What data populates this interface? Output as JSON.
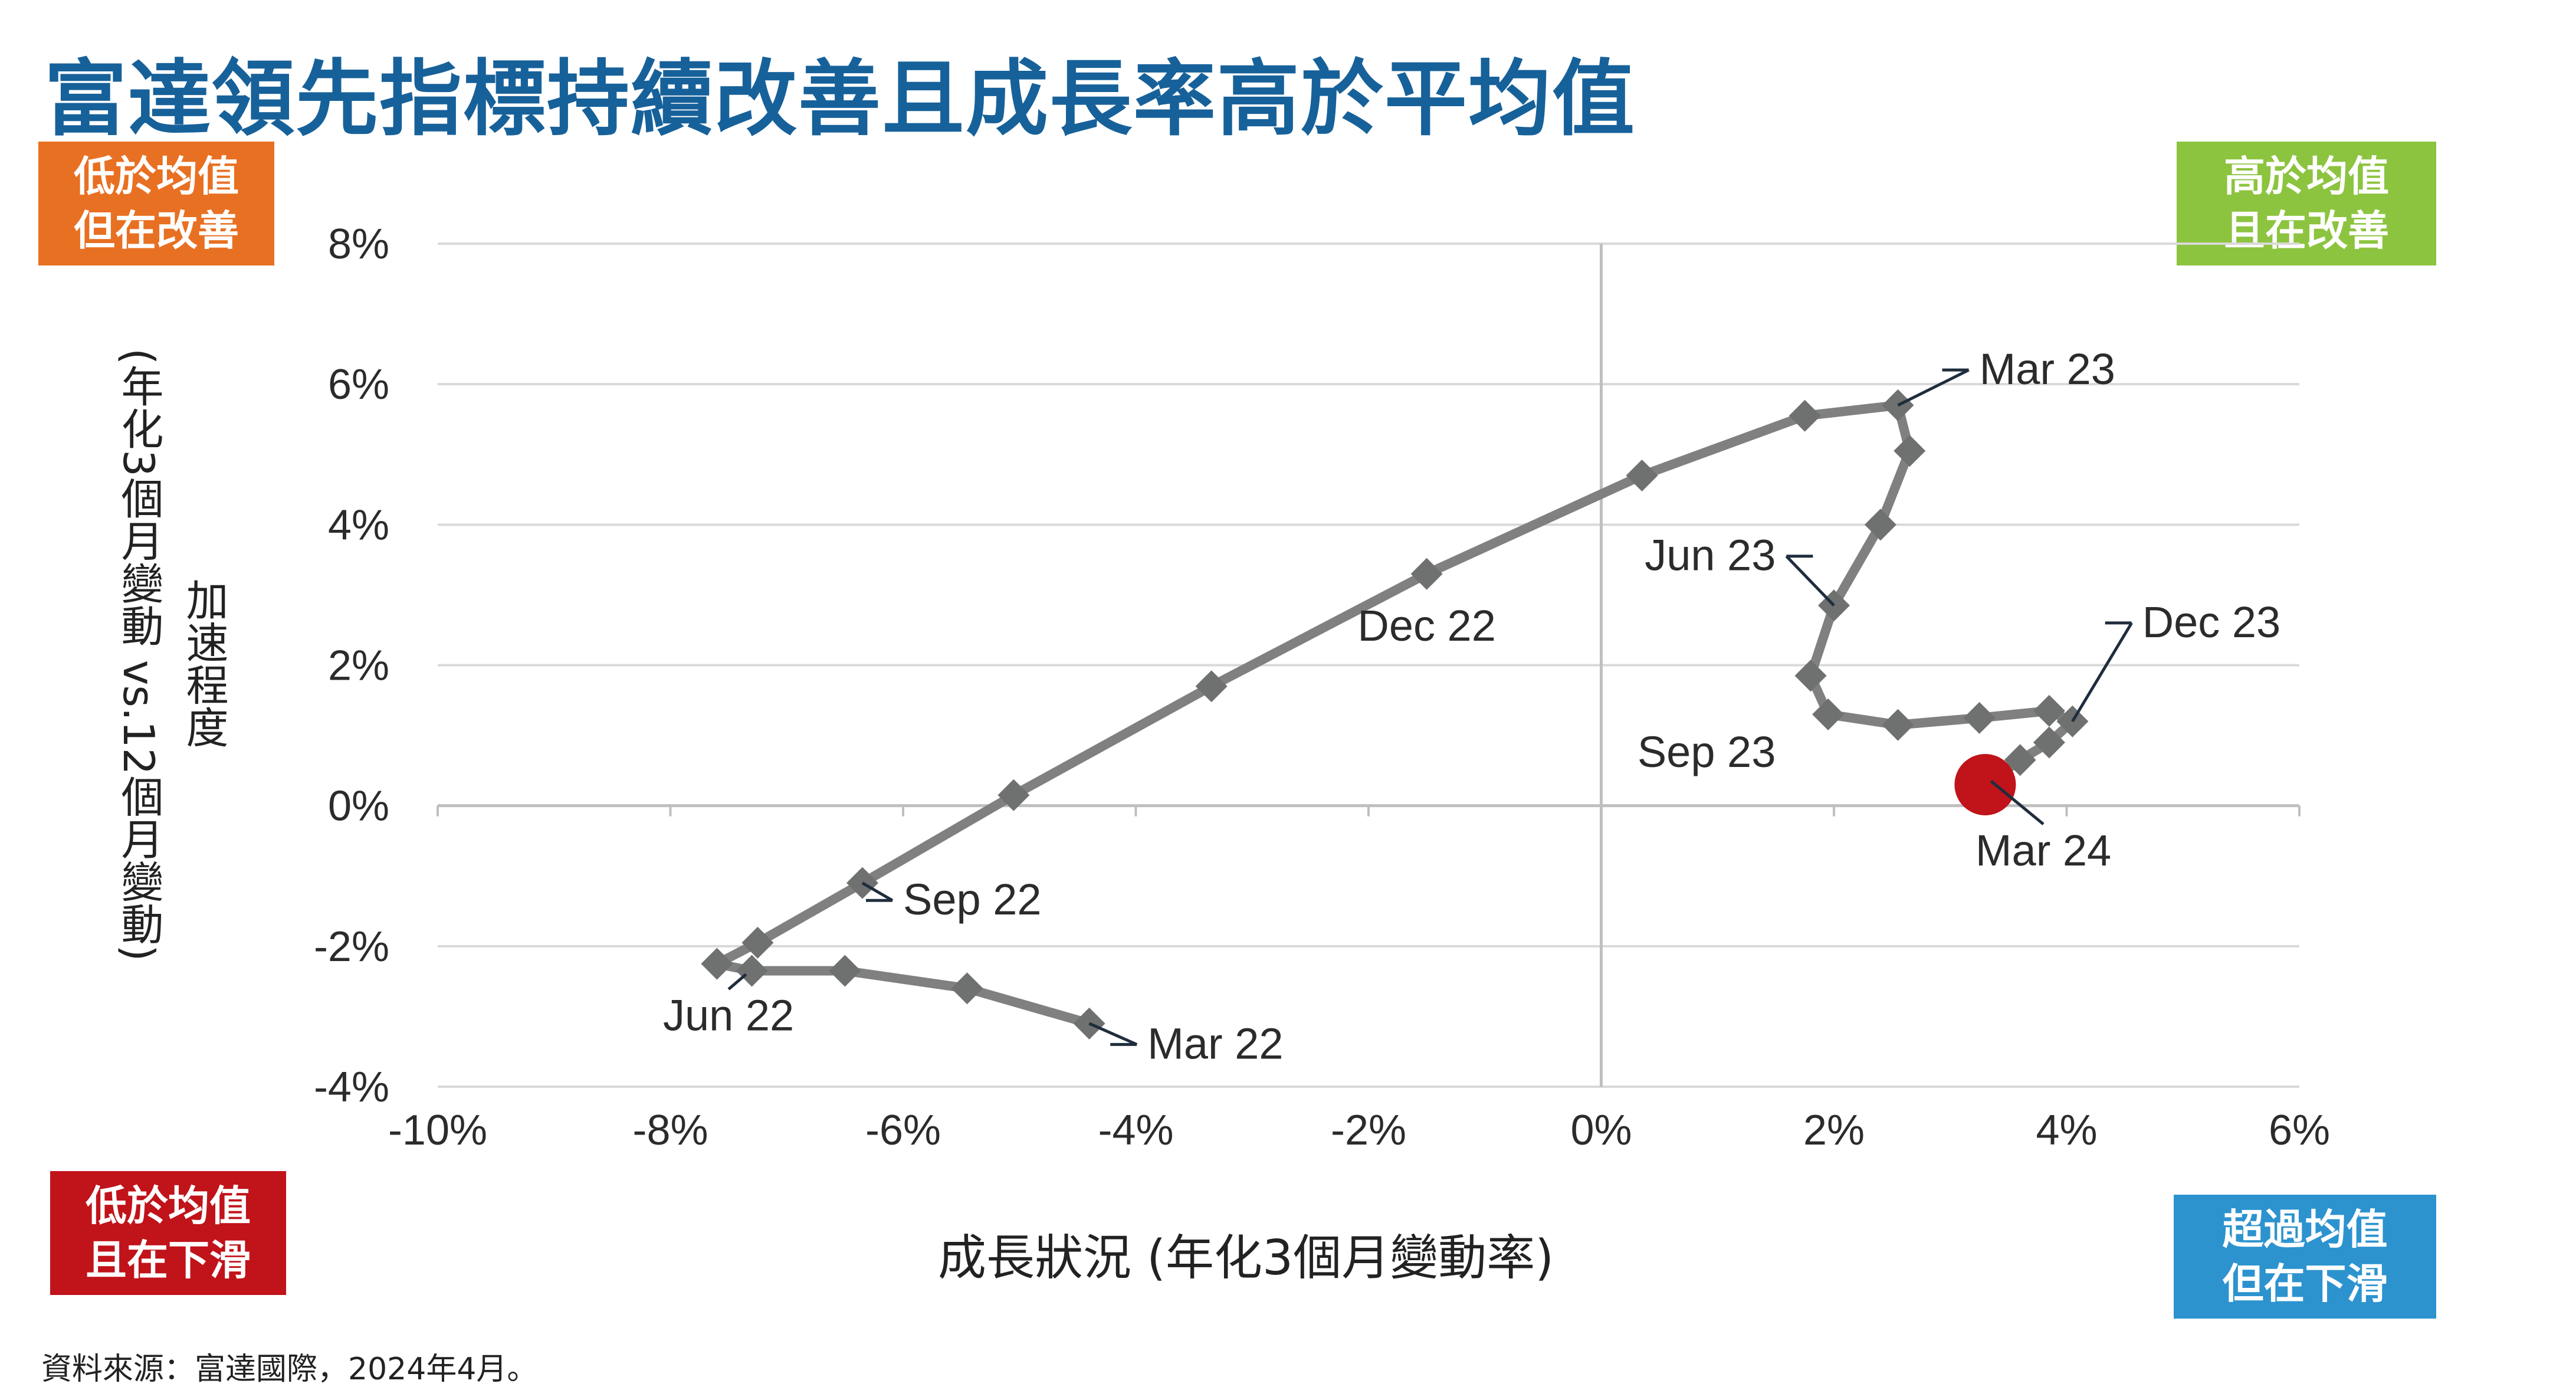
{
  "page": {
    "title": "富達領先指標持續改善且成長率高於平均值",
    "source": "資料來源：富達國際，2024年4月。",
    "quadrants": {
      "top_left": {
        "line1": "低於均值",
        "line2": "但在改善",
        "color": "#e87022"
      },
      "top_right": {
        "line1": "高於均值",
        "line2": "且在改善",
        "color": "#8cc43f"
      },
      "bottom_left": {
        "line1": "低於均值",
        "line2": "且在下滑",
        "color": "#c0131a"
      },
      "bottom_right": {
        "line1": "超過均值",
        "line2": "但在下滑",
        "color": "#2c93cf"
      }
    }
  },
  "chart_data": {
    "type": "line",
    "title": "",
    "xlabel": "成長狀況 (年化3個月變動率)",
    "ylabel_outer": "(年化3個月變動 vs.12個月變動)",
    "ylabel_inner": "加速程度",
    "xlim": [
      -10,
      6
    ],
    "ylim": [
      -4,
      8
    ],
    "x_ticks": [
      -10,
      -8,
      -6,
      -4,
      -2,
      0,
      2,
      4,
      6
    ],
    "x_tick_labels": [
      "-10%",
      "-8%",
      "-6%",
      "-4%",
      "-2%",
      "0%",
      "2%",
      "4%",
      "6%"
    ],
    "y_ticks": [
      -4,
      -2,
      0,
      2,
      4,
      6,
      8
    ],
    "y_tick_labels": [
      "-4%",
      "-2%",
      "0%",
      "2%",
      "4%",
      "6%",
      "8%"
    ],
    "grid": {
      "horizontal": true,
      "vertical": false
    },
    "series_color": "#808080",
    "marker": "diamond",
    "marker_color": "#6f7070",
    "end_marker_color": "#c0131a",
    "series": [
      {
        "name": "",
        "points": [
          [
            -4.4,
            -3.1
          ],
          [
            -5.45,
            -2.6
          ],
          [
            -6.5,
            -2.35
          ],
          [
            -7.3,
            -2.35
          ],
          [
            -7.6,
            -2.25
          ],
          [
            -7.25,
            -1.95
          ],
          [
            -6.35,
            -1.1
          ],
          [
            -5.05,
            0.15
          ],
          [
            -3.35,
            1.7
          ],
          [
            -1.5,
            3.3
          ],
          [
            0.35,
            4.7
          ],
          [
            1.75,
            5.55
          ],
          [
            2.55,
            5.7
          ],
          [
            2.65,
            5.05
          ],
          [
            2.4,
            4.0
          ],
          [
            2.0,
            2.85
          ],
          [
            1.8,
            1.85
          ],
          [
            1.95,
            1.3
          ],
          [
            2.55,
            1.15
          ],
          [
            3.25,
            1.25
          ],
          [
            3.85,
            1.35
          ],
          [
            4.05,
            1.2
          ],
          [
            3.85,
            0.9
          ],
          [
            3.6,
            0.65
          ],
          [
            3.3,
            0.3
          ]
        ]
      }
    ],
    "annotations": [
      {
        "text": "Mar 22",
        "point": [
          -4.4,
          -3.1
        ],
        "label": [
          -3.9,
          -3.6
        ],
        "anchor": "start"
      },
      {
        "text": "Jun 22",
        "point": [
          -7.35,
          -2.4
        ],
        "label": [
          -7.5,
          -3.2
        ],
        "anchor": "middle"
      },
      {
        "text": "Sep 22",
        "point": [
          -6.35,
          -1.1
        ],
        "label": [
          -6.0,
          -1.55
        ],
        "anchor": "start"
      },
      {
        "text": "Dec 22",
        "point": [],
        "label": [
          -1.5,
          2.35
        ],
        "anchor": "middle"
      },
      {
        "text": "Mar 23",
        "point": [
          2.55,
          5.7
        ],
        "label": [
          3.25,
          6.0
        ],
        "anchor": "start"
      },
      {
        "text": "Jun 23",
        "point": [
          2.0,
          2.85
        ],
        "label": [
          1.5,
          3.35
        ],
        "anchor": "end"
      },
      {
        "text": "Sep 23",
        "point": [],
        "label": [
          1.5,
          0.55
        ],
        "anchor": "end"
      },
      {
        "text": "Dec 23",
        "point": [
          4.05,
          1.2
        ],
        "label": [
          4.65,
          2.4
        ],
        "anchor": "start"
      },
      {
        "text": "Mar 24",
        "point": [
          3.35,
          0.35
        ],
        "label": [
          3.8,
          -0.85
        ],
        "anchor": "middle"
      }
    ]
  }
}
